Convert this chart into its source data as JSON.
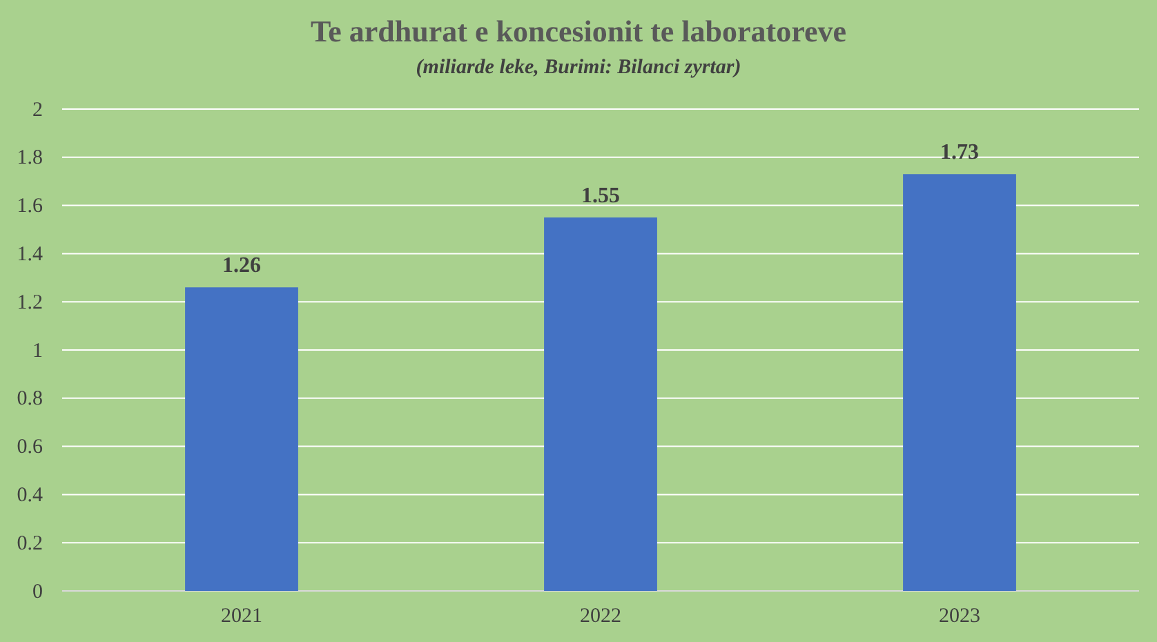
{
  "chart_data": {
    "type": "bar",
    "title": "Te ardhurat e koncesionit te laboratoreve",
    "subtitle": "(miliarde leke, Burimi: Bilanci zyrtar)",
    "categories": [
      "2021",
      "2022",
      "2023"
    ],
    "values": [
      1.26,
      1.55,
      1.73
    ],
    "color": "#4472c4",
    "ylim": [
      0,
      2
    ],
    "yticks": [
      0,
      0.2,
      0.4,
      0.6,
      0.8,
      1,
      1.2,
      1.4,
      1.6,
      1.8,
      2
    ],
    "grid": "y",
    "data_labels": true
  }
}
